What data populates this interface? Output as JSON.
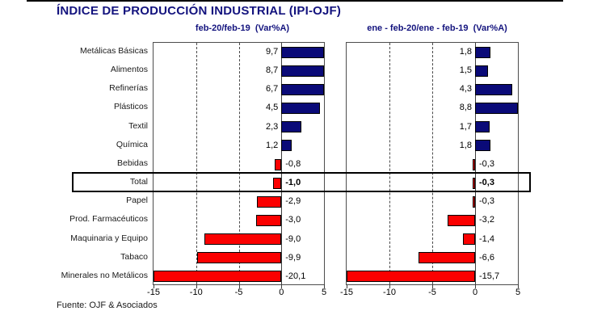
{
  "page": {
    "title": "ÍNDICE DE PRODUCCIÓN INDUSTRIAL (IPI-OJF)",
    "source": "Fuente: OJF & Asociados"
  },
  "colors": {
    "positive_bar": "#0a0a78",
    "negative_bar": "#fb0000",
    "bar_border": "#000000",
    "title_text": "#13137e",
    "axis_border": "#4d4d4d"
  },
  "highlight": {
    "category": "Total"
  },
  "chart_data": [
    {
      "type": "bar",
      "orientation": "horizontal",
      "title": "feb-20/feb-19  (Var%A)",
      "categories": [
        "Metálicas Básicas",
        "Alimentos",
        "Refinerías",
        "Plásticos",
        "Textil",
        "Química",
        "Bebidas",
        "Total",
        "Papel",
        "Prod. Farmacéuticos",
        "Maquinaria y Equipo",
        "Tabaco",
        "Minerales no Metálicos"
      ],
      "values": [
        9.7,
        8.7,
        6.7,
        4.5,
        2.3,
        1.2,
        -0.8,
        -1.0,
        -2.9,
        -3.0,
        -9.0,
        -9.9,
        -20.1
      ],
      "xlim": [
        -15,
        5
      ],
      "xticks": [
        -15,
        -10,
        -5,
        0,
        5
      ],
      "grid": "dashed-vertical",
      "value_label_format": "decimal-comma",
      "color_rule": "blue-positive-red-negative"
    },
    {
      "type": "bar",
      "orientation": "horizontal",
      "title": "ene - feb-20/ene - feb-19  (Var%A)",
      "categories": [
        "Metálicas Básicas",
        "Alimentos",
        "Refinerías",
        "Plásticos",
        "Textil",
        "Química",
        "Bebidas",
        "Total",
        "Papel",
        "Prod. Farmacéuticos",
        "Maquinaria y Equipo",
        "Tabaco",
        "Minerales no Metálicos"
      ],
      "values": [
        1.8,
        1.5,
        4.3,
        8.8,
        1.7,
        1.8,
        -0.3,
        -0.3,
        -0.3,
        -3.2,
        -1.4,
        -6.6,
        -15.7
      ],
      "xlim": [
        -15,
        5
      ],
      "xticks": [
        -15,
        -10,
        -5,
        0,
        5
      ],
      "grid": "dashed-vertical",
      "value_label_format": "decimal-comma",
      "color_rule": "blue-positive-red-negative"
    }
  ]
}
